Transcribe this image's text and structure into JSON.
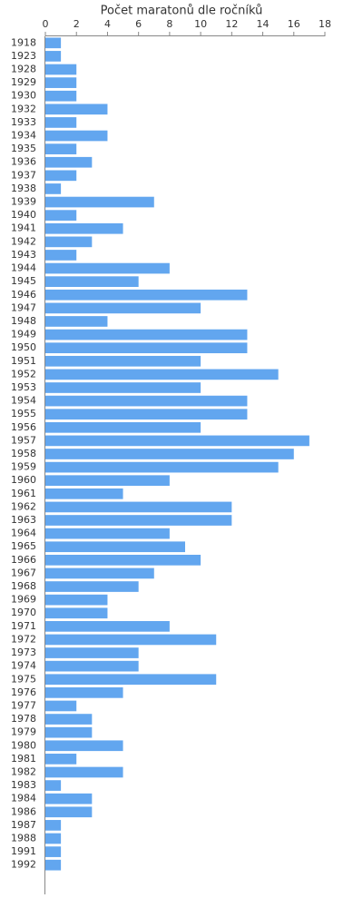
{
  "chart_data": {
    "type": "barh",
    "title": "Počet maratonů dle ročníků",
    "categories": [
      "1918",
      "1923",
      "1928",
      "1929",
      "1930",
      "1932",
      "1933",
      "1934",
      "1935",
      "1936",
      "1937",
      "1938",
      "1939",
      "1940",
      "1941",
      "1942",
      "1943",
      "1944",
      "1945",
      "1946",
      "1947",
      "1948",
      "1949",
      "1950",
      "1951",
      "1952",
      "1953",
      "1954",
      "1955",
      "1956",
      "1957",
      "1958",
      "1959",
      "1960",
      "1961",
      "1962",
      "1963",
      "1964",
      "1965",
      "1966",
      "1967",
      "1968",
      "1969",
      "1970",
      "1971",
      "1972",
      "1973",
      "1974",
      "1975",
      "1976",
      "1977",
      "1978",
      "1979",
      "1980",
      "1981",
      "1982",
      "1983",
      "1984",
      "1986",
      "1987",
      "1988",
      "1991",
      "1992"
    ],
    "values": [
      1,
      1,
      2,
      2,
      2,
      4,
      2,
      4,
      2,
      3,
      2,
      1,
      7,
      2,
      5,
      3,
      2,
      8,
      6,
      13,
      10,
      4,
      13,
      13,
      10,
      15,
      10,
      13,
      13,
      10,
      17,
      16,
      15,
      8,
      5,
      12,
      12,
      8,
      9,
      10,
      7,
      6,
      4,
      4,
      8,
      11,
      6,
      6,
      11,
      5,
      2,
      3,
      3,
      5,
      2,
      5,
      1,
      3,
      3,
      1,
      1,
      1,
      1
    ],
    "color": "#62a6ef",
    "xlim": [
      0,
      18
    ],
    "xticks": [
      0,
      2,
      4,
      6,
      8,
      10,
      12,
      14,
      16,
      18
    ]
  }
}
